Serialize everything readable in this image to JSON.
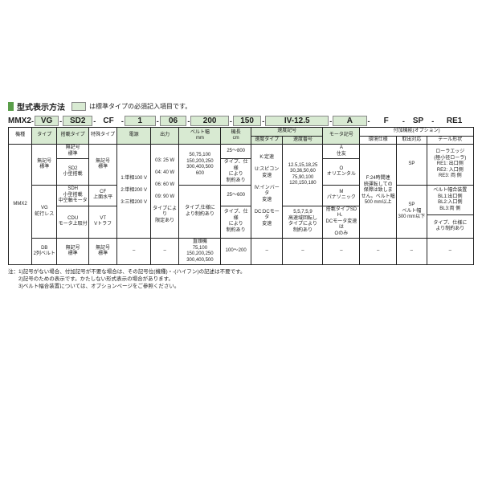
{
  "colors": {
    "accent_green": "#5a9e4a",
    "light_green": "#d8ead2",
    "border": "#222222"
  },
  "title": {
    "label": "型式表示方法",
    "note": "は標準タイプの必須記入項目です。"
  },
  "model": {
    "c0": "MMX2",
    "c1": "VG",
    "c2": "SD2",
    "c3": "CF",
    "c4": "1",
    "c5": "06",
    "c6": "200",
    "c7": "150",
    "c8": "IV-12.5",
    "c9": "A",
    "c10": "F",
    "c11": "SP",
    "c12": "RE1"
  },
  "head": {
    "c0": "機種",
    "c1": "タイプ",
    "c2": "搭載タイプ",
    "c3": "特殊タイプ",
    "c4": "電源",
    "c5": "出力",
    "c6": "ベルト幅\nmm",
    "c7": "機長\ncm",
    "speed": "速度記号",
    "c8a": "速度タイプ",
    "c8b": "速度番号",
    "c9": "モータ記号",
    "opt": "付加機能(オプション)",
    "c10": "環境仕様",
    "c11": "取出対応",
    "c12": "テール形状"
  },
  "body": {
    "r1c1": "無記号\n標準",
    "r1c2a": "無記号\n標準",
    "r1c2b": "SD2\n小型搭載",
    "r1c2c": "SDH\n小型搭載\n中空軸モータ",
    "r1c2d": "CDU\nモータ上取付",
    "r1c3top": "無記号\n標準",
    "r1c3cf": "CF\n上面水平",
    "r1c3vt": "VT\nVトラフ",
    "r1c4a": "1:単相100 V",
    "r1c4b": "2:単相200 V",
    "r1c4c": "3:三相200 V",
    "r1c5a": "03: 25 W",
    "r1c5b": "04: 40 W",
    "r1c5c": "06: 60 W",
    "r1c5d": "09: 90 W",
    "r1c5e": "タイプにより\n限定あり",
    "r1c6a": "50,75,100\n150,200,250\n300,400,500\n600",
    "r1c6b": "タイプ,仕様に\nより制約あり",
    "r1c6c": "直頭機\n75,100\n150,200,250\n300,400,500",
    "r1c7a": "25～800",
    "r1c7b": "タイプ、仕様\nにより\n制約あり",
    "r1c7c": "25～600",
    "r1c7d": "タイプ、仕様\nにより\n制約あり",
    "r1c7e": "100～200",
    "r1c8a_k": "K:定速",
    "r1c8a_u": "U:スピコン\n変速",
    "r1c8a_iv": "IV:インバータ\n変速",
    "r1c8a_dc": "DC:DCモータ\n変速",
    "r1c8b_1": "12.5,15,18,25\n30,36,50,60\n75,90,100\n120,150,180",
    "r1c8b_2": "5,5,7,5,9\n高速域回転し\nタイプにより\n制約あり",
    "r1c9_a": "A\n住友",
    "r1c9_o": "O\nオリエンタル",
    "r1c9_m": "M\nパナソニック",
    "r1c9_n": "搭載タイプSDH、\nDCモータ変速は\nOのみ",
    "r1c10": "F:24時間連\n続運転しての\n保障は致しま\nせん。ベルト幅\n500 mm以上",
    "r1c11a": "SP",
    "r1c11b": "SP\nベルト幅\n300 mm以下",
    "r1c12": "ローラエッジ\n(極小径ローラ)\nRE1: 出口側\nRE2: 入口側\nRE3: 両 側",
    "r1c12b": "ベルト幅合装置\nBL1:出口側\nBL2:入口側\nBL3:両 側",
    "r1c12c": "タイプ、仕様に\nより制約あり",
    "mmx2": "MMX2",
    "vg": "VG\n蛇行レス",
    "db": "DB\n2列ベルト",
    "std": "無記号\n標準",
    "dash": "–"
  },
  "notes": {
    "n1": "注：1)記号がない場合、付加記号が不要な場合は、その記号位(機種)・-(ハイフン)の記述は不要です。",
    "n2": "　　2)記号のための表示です。かたしない形式表示の場合があります。",
    "n3": "　　3)ベルト幅合装置については、オプションページをご参照ください。"
  },
  "widths": {
    "c0": 28,
    "c1": 30,
    "c2": 38,
    "c3": 34,
    "c4": 40,
    "c5": 34,
    "c6": 50,
    "c7": 36,
    "c8a": 38,
    "c8b": 48,
    "c9": 44,
    "c10": 44,
    "c11": 36,
    "c12": 56
  }
}
